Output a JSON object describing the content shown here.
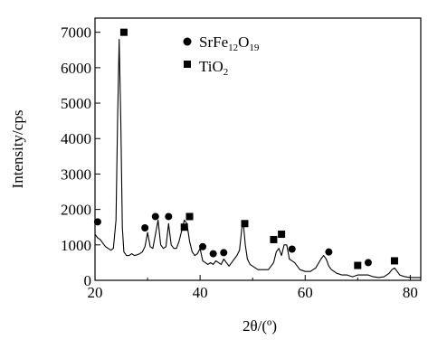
{
  "chart_data": {
    "type": "line",
    "xlabel": "2θ/(º)",
    "ylabel": "Intensity/cps",
    "xlim": [
      20,
      82
    ],
    "ylim": [
      0,
      7400
    ],
    "x_ticks": [
      20,
      40,
      60,
      80
    ],
    "x_tick_labels": [
      "20",
      "40",
      "60",
      "80"
    ],
    "y_ticks": [
      0,
      1000,
      2000,
      3000,
      4000,
      5000,
      6000,
      7000
    ],
    "y_tick_labels": [
      "0",
      "1000",
      "2000",
      "3000",
      "4000",
      "5000",
      "6000",
      "7000"
    ],
    "grid": false,
    "legend_position": "top-center",
    "legend": [
      {
        "marker": "circle",
        "label_main": "SrFe",
        "sub1": "12",
        "mid": "O",
        "sub2": "19"
      },
      {
        "marker": "square",
        "label_main": "TiO",
        "sub1": "2"
      }
    ],
    "series": [
      {
        "x": [
          20.0,
          20.5,
          21.0,
          21.5,
          22.0,
          22.5,
          23.0,
          23.5,
          24.0,
          24.3,
          24.6,
          24.9,
          25.2,
          25.5,
          26.0,
          26.5,
          27.0,
          27.5,
          28.0,
          28.5,
          29.0,
          29.5,
          30.0,
          30.5,
          31.0,
          31.5,
          32.0,
          32.5,
          33.0,
          33.5,
          34.0,
          34.5,
          35.0,
          35.5,
          36.0,
          36.5,
          37.0,
          37.5,
          38.0,
          38.5,
          39.0,
          39.5,
          40.0,
          40.5,
          41.0,
          41.5,
          42.0,
          42.5,
          43.0,
          43.5,
          44.0,
          44.5,
          45.0,
          45.5,
          46.0,
          46.5,
          47.0,
          47.5,
          48.0,
          48.3,
          48.6,
          49.0,
          49.5,
          50.0,
          51.0,
          52.0,
          53.0,
          54.0,
          54.5,
          55.0,
          55.5,
          56.0,
          56.5,
          57.0,
          57.5,
          58.0,
          59.0,
          60.0,
          61.0,
          62.0,
          63.0,
          63.5,
          64.0,
          64.5,
          65.0,
          66.0,
          67.0,
          68.0,
          69.0,
          70.0,
          71.0,
          72.0,
          73.0,
          74.0,
          75.0,
          76.0,
          76.5,
          77.0,
          77.5,
          78.0,
          79.0,
          80.0,
          81.0,
          82.0
        ],
        "y": [
          1300,
          1200,
          1150,
          1050,
          950,
          900,
          850,
          900,
          1700,
          4600,
          6800,
          4500,
          1500,
          800,
          700,
          700,
          750,
          700,
          720,
          750,
          800,
          950,
          1350,
          950,
          900,
          1300,
          1700,
          1000,
          900,
          950,
          1600,
          1000,
          900,
          900,
          1100,
          1400,
          1700,
          1600,
          1100,
          800,
          700,
          750,
          900,
          550,
          500,
          450,
          500,
          450,
          550,
          500,
          450,
          600,
          500,
          400,
          500,
          600,
          700,
          850,
          1550,
          1500,
          1000,
          600,
          450,
          400,
          300,
          300,
          300,
          500,
          800,
          900,
          700,
          1000,
          1000,
          600,
          550,
          500,
          300,
          250,
          250,
          350,
          600,
          700,
          600,
          400,
          300,
          200,
          150,
          150,
          100,
          150,
          150,
          150,
          100,
          80,
          100,
          200,
          300,
          350,
          250,
          150,
          100,
          80,
          80,
          80
        ]
      }
    ],
    "circle_markers": [
      {
        "x": 20.5,
        "y": 1650
      },
      {
        "x": 29.5,
        "y": 1480
      },
      {
        "x": 31.5,
        "y": 1800
      },
      {
        "x": 34.0,
        "y": 1800
      },
      {
        "x": 40.5,
        "y": 950
      },
      {
        "x": 42.5,
        "y": 750
      },
      {
        "x": 44.5,
        "y": 780
      },
      {
        "x": 57.5,
        "y": 880
      },
      {
        "x": 64.5,
        "y": 800
      },
      {
        "x": 72.0,
        "y": 500
      }
    ],
    "square_markers": [
      {
        "x": 25.5,
        "y": 7000
      },
      {
        "x": 37.0,
        "y": 1500
      },
      {
        "x": 38.0,
        "y": 1800
      },
      {
        "x": 48.5,
        "y": 1600
      },
      {
        "x": 54.0,
        "y": 1150
      },
      {
        "x": 55.5,
        "y": 1300
      },
      {
        "x": 70.0,
        "y": 420
      },
      {
        "x": 77.0,
        "y": 550
      }
    ]
  }
}
